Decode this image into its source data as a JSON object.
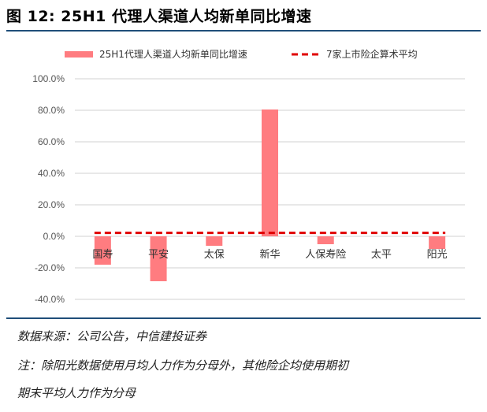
{
  "header": {
    "title": "图 12: 25H1 代理人渠道人均新单同比增速"
  },
  "chart_data": {
    "type": "bar",
    "categories": [
      "国寿",
      "平安",
      "太保",
      "新华",
      "人保寿险",
      "太平",
      "阳光"
    ],
    "series": [
      {
        "name": "25H1代理人渠道人均新单同比增速",
        "type": "bar",
        "color": "#ff7c80",
        "values": [
          -18.0,
          -28.5,
          -6.0,
          80.5,
          -5.0,
          0.0,
          -8.0
        ]
      },
      {
        "name": "7家上市险企算术平均",
        "type": "line",
        "style": "dashed",
        "color": "#e00000",
        "values": [
          2.2,
          2.2,
          2.2,
          2.2,
          2.2,
          2.2,
          2.2
        ]
      }
    ],
    "ylim": [
      -40,
      100
    ],
    "yticks": [
      "100.0%",
      "80.0%",
      "60.0%",
      "40.0%",
      "20.0%",
      "0.0%",
      "-20.0%",
      "-40.0%"
    ],
    "ytick_values": [
      100,
      80,
      60,
      40,
      20,
      0,
      -20,
      -40
    ],
    "grid": true,
    "legend_position": "top"
  },
  "footer": {
    "source": "数据来源：公司公告，中信建投证券",
    "note_line1": "注：除阳光数据使用月均人力作为分母外，其他险企均使用期初",
    "note_line2": "期末平均人力作为分母"
  }
}
